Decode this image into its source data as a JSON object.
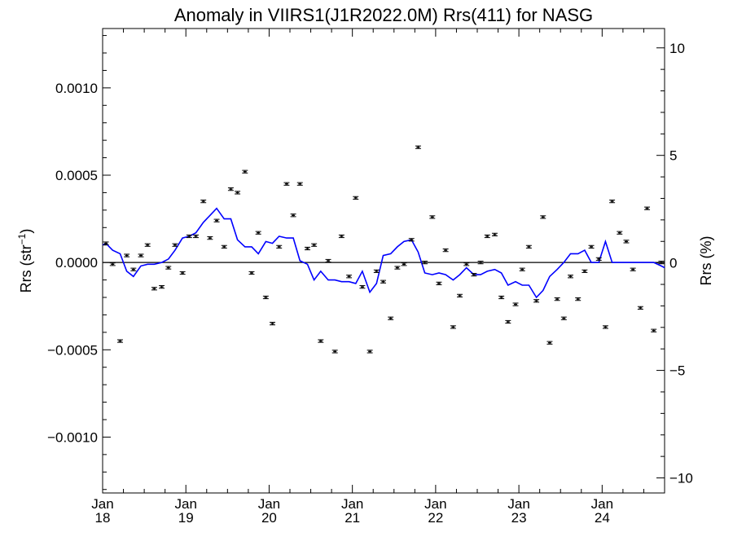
{
  "chart_data": {
    "type": "scatter",
    "title": "Anomaly in VIIRS1(J1R2022.0M) Rrs(411) for NASG",
    "ylabel": "Rrs (str",
    "ylabel_sup": "−1",
    "ylabel_close": ")",
    "y2label": "Rrs (%)",
    "xlim": [
      2018.0,
      2024.75
    ],
    "ylim": [
      -0.00132,
      0.00134
    ],
    "y2lim": [
      -10.7,
      10.9
    ],
    "grid": false,
    "x_ticks": [
      {
        "value": 2018,
        "month": "Jan",
        "year": "18"
      },
      {
        "value": 2019,
        "month": "Jan",
        "year": "19"
      },
      {
        "value": 2020,
        "month": "Jan",
        "year": "20"
      },
      {
        "value": 2021,
        "month": "Jan",
        "year": "21"
      },
      {
        "value": 2022,
        "month": "Jan",
        "year": "22"
      },
      {
        "value": 2023,
        "month": "Jan",
        "year": "23"
      },
      {
        "value": 2024,
        "month": "Jan",
        "year": "24"
      }
    ],
    "y_ticks": [
      {
        "value": 0.001,
        "label": "0.0010"
      },
      {
        "value": 0.0005,
        "label": "0.0005"
      },
      {
        "value": 0.0,
        "label": "0.0000"
      },
      {
        "value": -0.0005,
        "label": "−0.0005"
      },
      {
        "value": -0.001,
        "label": "−0.0010"
      }
    ],
    "y2_ticks": [
      {
        "value": 10,
        "label": "10"
      },
      {
        "value": 5,
        "label": "5"
      },
      {
        "value": 0,
        "label": "0"
      },
      {
        "value": -5,
        "label": "−5"
      },
      {
        "value": -10,
        "label": "−10"
      }
    ],
    "series": [
      {
        "kind": "points-with-errorbars",
        "color": "#000000",
        "x": [
          2018.04,
          2018.12,
          2018.21,
          2018.29,
          2018.37,
          2018.46,
          2018.54,
          2018.62,
          2018.71,
          2018.79,
          2018.87,
          2018.96,
          2019.04,
          2019.12,
          2019.21,
          2019.29,
          2019.37,
          2019.46,
          2019.54,
          2019.62,
          2019.71,
          2019.79,
          2019.87,
          2019.96,
          2020.04,
          2020.12,
          2020.21,
          2020.29,
          2020.37,
          2020.46,
          2020.54,
          2020.62,
          2020.71,
          2020.79,
          2020.87,
          2020.96,
          2021.04,
          2021.12,
          2021.21,
          2021.29,
          2021.37,
          2021.46,
          2021.54,
          2021.62,
          2021.71,
          2021.79,
          2021.87,
          2021.96,
          2022.04,
          2022.12,
          2022.21,
          2022.29,
          2022.37,
          2022.46,
          2022.54,
          2022.62,
          2022.71,
          2022.79,
          2022.87,
          2022.96,
          2023.04,
          2023.12,
          2023.21,
          2023.29,
          2023.37,
          2023.46,
          2023.54,
          2023.62,
          2023.71,
          2023.79,
          2023.87,
          2023.96,
          2024.04,
          2024.12,
          2024.21,
          2024.29,
          2024.37,
          2024.46,
          2024.54,
          2024.62,
          2024.71
        ],
        "y": [
          0.00011,
          -1e-05,
          -0.00045,
          4e-05,
          -4e-05,
          4e-05,
          0.0001,
          -0.00015,
          -0.00014,
          -3e-05,
          0.0001,
          -6e-05,
          0.00015,
          0.00015,
          0.00035,
          0.00014,
          0.00024,
          9e-05,
          0.00042,
          0.0004,
          0.00052,
          -6e-05,
          0.00017,
          -0.0002,
          -0.00035,
          9e-05,
          0.00045,
          0.00027,
          0.00045,
          8e-05,
          0.0001,
          -0.00045,
          1e-05,
          -0.00051,
          0.00015,
          -8e-05,
          0.00037,
          -0.00014,
          -0.00051,
          -5e-05,
          -0.00011,
          -0.00032,
          -3e-05,
          -1e-05,
          0.00013,
          0.00066,
          0.0,
          0.00026,
          -0.00012,
          7e-05,
          -0.00037,
          -0.00019,
          -1e-05,
          -7e-05,
          0.0,
          0.00015,
          0.00016,
          -0.0002,
          -0.00034,
          -0.00024,
          -4e-05,
          9e-05,
          -0.00022,
          0.00026,
          -0.00046,
          -0.00021,
          -0.00032,
          -8e-05,
          -0.00021,
          -5e-05,
          9e-05,
          2e-05,
          -0.00037,
          0.00035,
          0.00017,
          0.00012,
          -4e-05,
          -0.00026,
          0.00031,
          -0.00039,
          0.0
        ]
      },
      {
        "kind": "line",
        "color": "#0000ff",
        "x": [
          2018.0,
          2018.04,
          2018.08,
          2018.12,
          2018.21,
          2018.29,
          2018.37,
          2018.46,
          2018.54,
          2018.62,
          2018.71,
          2018.79,
          2018.87,
          2018.96,
          2019.04,
          2019.12,
          2019.21,
          2019.29,
          2019.37,
          2019.46,
          2019.54,
          2019.62,
          2019.71,
          2019.79,
          2019.87,
          2019.96,
          2020.04,
          2020.12,
          2020.21,
          2020.29,
          2020.37,
          2020.46,
          2020.54,
          2020.62,
          2020.71,
          2020.79,
          2020.87,
          2020.96,
          2021.04,
          2021.12,
          2021.21,
          2021.29,
          2021.37,
          2021.46,
          2021.54,
          2021.62,
          2021.71,
          2021.79,
          2021.87,
          2021.96,
          2022.04,
          2022.12,
          2022.21,
          2022.29,
          2022.37,
          2022.46,
          2022.54,
          2022.62,
          2022.71,
          2022.79,
          2022.87,
          2022.96,
          2023.04,
          2023.12,
          2023.21,
          2023.29,
          2023.37,
          2023.46,
          2023.54,
          2023.62,
          2023.71,
          2023.79,
          2023.87,
          2023.96,
          2024.04,
          2024.12,
          2024.21,
          2024.29,
          2024.37,
          2024.46,
          2024.54,
          2024.62,
          2024.71,
          2024.75
        ],
        "y": [
          0.0001,
          0.00011,
          9e-05,
          7e-05,
          5e-05,
          -5e-05,
          -8e-05,
          -2e-05,
          -1e-05,
          -1e-05,
          0.0,
          2e-05,
          7e-05,
          0.00014,
          0.00015,
          0.00017,
          0.00023,
          0.00027,
          0.00031,
          0.00025,
          0.00025,
          0.00013,
          9e-05,
          9e-05,
          5e-05,
          0.00012,
          0.00011,
          0.00015,
          0.00014,
          0.00014,
          1e-05,
          -1e-05,
          -0.0001,
          -5e-05,
          -0.0001,
          -0.0001,
          -0.00011,
          -0.00011,
          -0.00012,
          -5e-05,
          -0.00017,
          -0.00012,
          4e-05,
          5e-05,
          9e-05,
          0.00012,
          0.00013,
          6e-05,
          -6e-05,
          -7e-05,
          -6e-05,
          -7e-05,
          -0.0001,
          -7e-05,
          -3e-05,
          -7e-05,
          -7e-05,
          -5e-05,
          -4e-05,
          -6e-05,
          -0.00013,
          -0.00011,
          -0.00013,
          -0.00013,
          -0.0002,
          -0.00016,
          -8e-05,
          -4e-05,
          0.0,
          5e-05,
          5e-05,
          7e-05,
          0.0,
          0.0,
          0.00012,
          0.0,
          0.0,
          0.0,
          0.0,
          0.0,
          0.0,
          0.0,
          -2e-05,
          -3e-05
        ]
      }
    ]
  }
}
